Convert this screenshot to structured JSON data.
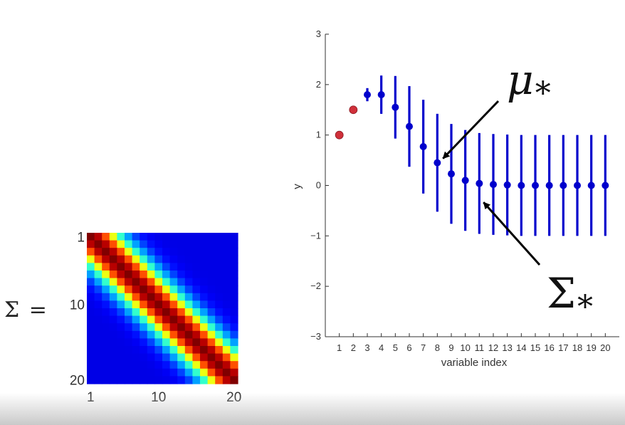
{
  "covariance_panel": {
    "label": "Σ =",
    "size": 20,
    "row_ticks": [
      "1",
      "10",
      "20"
    ],
    "col_ticks": [
      "1",
      "10",
      "20"
    ],
    "colormap": "jet"
  },
  "chart_data": {
    "type": "scatter",
    "title": "",
    "xlabel": "variable index",
    "ylabel": "y",
    "xlim": [
      0,
      21
    ],
    "ylim": [
      -3,
      3
    ],
    "x_ticks": [
      "1",
      "2",
      "3",
      "4",
      "5",
      "6",
      "7",
      "8",
      "9",
      "10",
      "11",
      "12",
      "13",
      "14",
      "15",
      "16",
      "17",
      "18",
      "19",
      "20"
    ],
    "y_ticks": [
      "3",
      "2",
      "1",
      "0",
      "−1",
      "−2",
      "−3"
    ],
    "grid": false,
    "observed": {
      "color": "#d0303a",
      "x": [
        1,
        2
      ],
      "y": [
        1.0,
        1.5
      ]
    },
    "predicted": {
      "color": "#0000cc",
      "x": [
        3,
        4,
        5,
        6,
        7,
        8,
        9,
        10,
        11,
        12,
        13,
        14,
        15,
        16,
        17,
        18,
        19,
        20
      ],
      "mean": [
        1.8,
        1.8,
        1.55,
        1.17,
        0.77,
        0.45,
        0.23,
        0.1,
        0.04,
        0.02,
        0.01,
        0.0,
        0.0,
        0.0,
        0.0,
        0.0,
        0.0,
        0.0
      ],
      "err": [
        0.13,
        0.38,
        0.62,
        0.8,
        0.93,
        0.97,
        0.99,
        1.0,
        1.0,
        1.0,
        1.0,
        1.0,
        1.0,
        1.0,
        1.0,
        1.0,
        1.0,
        1.0
      ]
    },
    "annotations": [
      {
        "text": "μ",
        "subscript": "*",
        "points_to": {
          "x": 8,
          "y": 0.45
        }
      },
      {
        "text": "Σ",
        "subscript": "*",
        "points_to": {
          "x": 11,
          "y": -0.25
        }
      }
    ]
  }
}
